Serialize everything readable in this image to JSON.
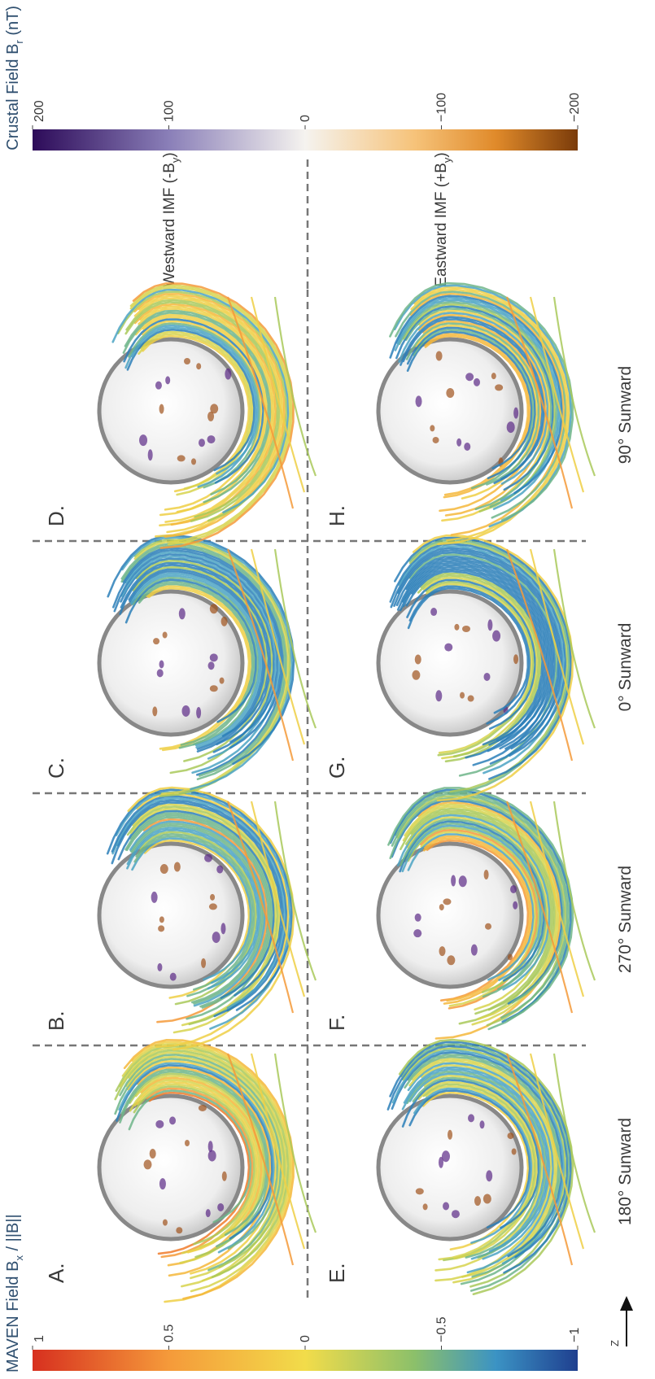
{
  "colorbars": {
    "bx": {
      "title": {
        "text": "MAVEN Field B",
        "subscript": "x",
        "suffix": " / ||B||"
      },
      "lim": [
        -1,
        1
      ],
      "ticks": [
        1,
        0.5,
        0,
        {
          "value": -0.5,
          "label": "−0.5"
        },
        {
          "value": -1,
          "label": "−1"
        }
      ]
    },
    "br": {
      "title": {
        "text": "Crustal Field B",
        "subscript": "r",
        "suffix": " (nT)"
      },
      "lim": [
        -200,
        200
      ],
      "ticks": [
        200,
        100,
        0,
        {
          "value": -100,
          "label": "−100"
        },
        {
          "value": -200,
          "label": "−200"
        }
      ]
    }
  },
  "axis_label": "Z",
  "columns": [
    "180° Sunward",
    "270° Sunward",
    "0° Sunward",
    "90° Sunward"
  ],
  "rows": [
    {
      "text": "Westward IMF (-B",
      "subscript": "y",
      "suffix": ")"
    },
    {
      "text": "Eastward IMF (+B",
      "subscript": "y",
      "suffix": ")"
    }
  ],
  "panels": [
    "A.",
    "B.",
    "C.",
    "D.",
    "E.",
    "F.",
    "G.",
    "H."
  ]
}
